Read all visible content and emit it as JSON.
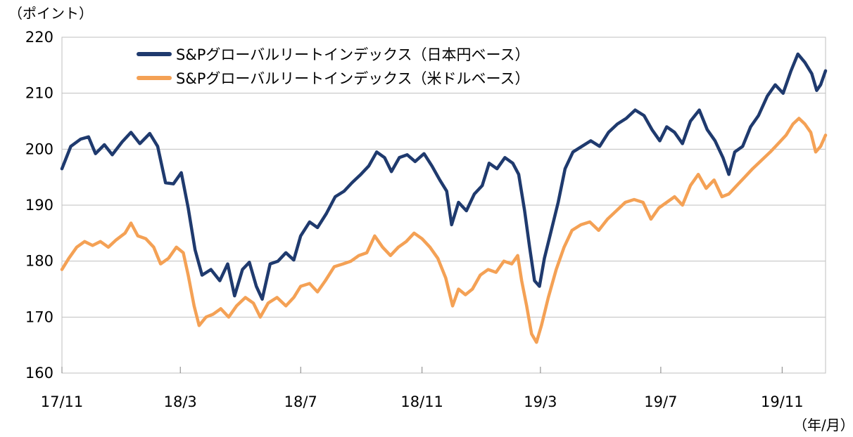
{
  "chart_data": {
    "type": "line",
    "title": "",
    "ylabel": "（ポイント）",
    "xlabel": "（年/月）",
    "ylim": [
      160,
      220
    ],
    "yticks": [
      160,
      170,
      180,
      190,
      200,
      210,
      220
    ],
    "ytick_labels": [
      "160",
      "170",
      "180",
      "190",
      "200",
      "210",
      "220"
    ],
    "x_range": [
      "2017-11-01",
      "2019-12-15"
    ],
    "xticks": [
      "2017-11-01",
      "2018-03-01",
      "2018-07-01",
      "2018-11-01",
      "2019-03-01",
      "2019-07-01",
      "2019-11-01"
    ],
    "xtick_labels": [
      "17/11",
      "18/3",
      "18/7",
      "18/11",
      "19/3",
      "19/7",
      "19/11"
    ],
    "grid": "horizontal",
    "legend_position": "top-left",
    "series": [
      {
        "name": "S&Pグローバルリートインデックス（日本円ベース）",
        "color": "#1f3a6e",
        "points": [
          [
            "2017-11-01",
            196.5
          ],
          [
            "2017-11-10",
            200.5
          ],
          [
            "2017-11-20",
            201.8
          ],
          [
            "2017-11-28",
            202.2
          ],
          [
            "2017-12-05",
            199.2
          ],
          [
            "2017-12-14",
            200.8
          ],
          [
            "2017-12-22",
            199.0
          ],
          [
            "2018-01-01",
            201.3
          ],
          [
            "2018-01-10",
            203.0
          ],
          [
            "2018-01-19",
            201.0
          ],
          [
            "2018-01-29",
            202.8
          ],
          [
            "2018-02-06",
            200.5
          ],
          [
            "2018-02-14",
            194.0
          ],
          [
            "2018-02-22",
            193.8
          ],
          [
            "2018-03-02",
            195.8
          ],
          [
            "2018-03-09",
            189.5
          ],
          [
            "2018-03-16",
            182.0
          ],
          [
            "2018-03-23",
            177.5
          ],
          [
            "2018-04-01",
            178.5
          ],
          [
            "2018-04-10",
            176.5
          ],
          [
            "2018-04-18",
            179.5
          ],
          [
            "2018-04-25",
            173.8
          ],
          [
            "2018-05-03",
            178.5
          ],
          [
            "2018-05-10",
            179.8
          ],
          [
            "2018-05-17",
            175.5
          ],
          [
            "2018-05-23",
            173.2
          ],
          [
            "2018-05-31",
            179.5
          ],
          [
            "2018-06-08",
            180.0
          ],
          [
            "2018-06-16",
            181.5
          ],
          [
            "2018-06-24",
            180.2
          ],
          [
            "2018-07-01",
            184.5
          ],
          [
            "2018-07-10",
            187.0
          ],
          [
            "2018-07-18",
            186.0
          ],
          [
            "2018-07-27",
            188.5
          ],
          [
            "2018-08-05",
            191.5
          ],
          [
            "2018-08-14",
            192.5
          ],
          [
            "2018-08-22",
            194.0
          ],
          [
            "2018-08-31",
            195.5
          ],
          [
            "2018-09-08",
            197.0
          ],
          [
            "2018-09-16",
            199.5
          ],
          [
            "2018-09-24",
            198.5
          ],
          [
            "2018-10-01",
            196.0
          ],
          [
            "2018-10-09",
            198.5
          ],
          [
            "2018-10-17",
            199.0
          ],
          [
            "2018-10-25",
            197.8
          ],
          [
            "2018-11-03",
            199.2
          ],
          [
            "2018-11-11",
            197.0
          ],
          [
            "2018-11-19",
            194.5
          ],
          [
            "2018-11-26",
            192.5
          ],
          [
            "2018-12-01",
            186.5
          ],
          [
            "2018-12-08",
            190.5
          ],
          [
            "2018-12-16",
            189.0
          ],
          [
            "2018-12-24",
            192.0
          ],
          [
            "2019-01-01",
            193.5
          ],
          [
            "2019-01-08",
            197.5
          ],
          [
            "2019-01-16",
            196.5
          ],
          [
            "2019-01-24",
            198.5
          ],
          [
            "2019-02-01",
            197.5
          ],
          [
            "2019-02-07",
            195.5
          ],
          [
            "2019-02-13",
            189.0
          ],
          [
            "2019-02-18",
            182.5
          ],
          [
            "2019-02-23",
            176.5
          ],
          [
            "2019-02-28",
            175.5
          ],
          [
            "2019-03-05",
            180.5
          ],
          [
            "2019-03-12",
            185.5
          ],
          [
            "2019-03-19",
            190.5
          ],
          [
            "2019-03-26",
            196.5
          ],
          [
            "2019-04-03",
            199.5
          ],
          [
            "2019-04-12",
            200.5
          ],
          [
            "2019-04-21",
            201.5
          ],
          [
            "2019-04-30",
            200.5
          ],
          [
            "2019-05-09",
            203.0
          ],
          [
            "2019-05-18",
            204.5
          ],
          [
            "2019-05-27",
            205.5
          ],
          [
            "2019-06-05",
            207.0
          ],
          [
            "2019-06-14",
            206.0
          ],
          [
            "2019-06-22",
            203.5
          ],
          [
            "2019-06-30",
            201.5
          ],
          [
            "2019-07-07",
            204.0
          ],
          [
            "2019-07-15",
            203.0
          ],
          [
            "2019-07-23",
            201.0
          ],
          [
            "2019-07-31",
            205.0
          ],
          [
            "2019-08-09",
            207.0
          ],
          [
            "2019-08-17",
            203.5
          ],
          [
            "2019-08-25",
            201.5
          ],
          [
            "2019-09-02",
            198.5
          ],
          [
            "2019-09-08",
            195.5
          ],
          [
            "2019-09-14",
            199.5
          ],
          [
            "2019-09-22",
            200.5
          ],
          [
            "2019-09-30",
            204.0
          ],
          [
            "2019-10-08",
            206.0
          ],
          [
            "2019-10-17",
            209.5
          ],
          [
            "2019-10-25",
            211.5
          ],
          [
            "2019-11-02",
            210.0
          ],
          [
            "2019-11-10",
            214.0
          ],
          [
            "2019-11-17",
            217.0
          ],
          [
            "2019-11-24",
            215.5
          ],
          [
            "2019-12-01",
            213.5
          ],
          [
            "2019-12-06",
            210.5
          ],
          [
            "2019-12-10",
            211.5
          ],
          [
            "2019-12-15",
            214.0
          ]
        ]
      },
      {
        "name": "S&Pグローバルリートインデックス（米ドルベース）",
        "color": "#f4a155",
        "points": [
          [
            "2017-11-01",
            178.5
          ],
          [
            "2017-11-08",
            180.5
          ],
          [
            "2017-11-16",
            182.5
          ],
          [
            "2017-11-24",
            183.5
          ],
          [
            "2017-12-02",
            182.8
          ],
          [
            "2017-12-10",
            183.5
          ],
          [
            "2017-12-18",
            182.5
          ],
          [
            "2017-12-26",
            183.8
          ],
          [
            "2018-01-04",
            185.0
          ],
          [
            "2018-01-10",
            186.8
          ],
          [
            "2018-01-17",
            184.5
          ],
          [
            "2018-01-25",
            184.0
          ],
          [
            "2018-02-02",
            182.5
          ],
          [
            "2018-02-09",
            179.5
          ],
          [
            "2018-02-17",
            180.5
          ],
          [
            "2018-02-25",
            182.5
          ],
          [
            "2018-03-04",
            181.5
          ],
          [
            "2018-03-09",
            177.5
          ],
          [
            "2018-03-15",
            172.0
          ],
          [
            "2018-03-20",
            168.5
          ],
          [
            "2018-03-27",
            170.0
          ],
          [
            "2018-04-03",
            170.5
          ],
          [
            "2018-04-11",
            171.5
          ],
          [
            "2018-04-19",
            170.0
          ],
          [
            "2018-04-27",
            172.0
          ],
          [
            "2018-05-06",
            173.5
          ],
          [
            "2018-05-14",
            172.5
          ],
          [
            "2018-05-21",
            170.0
          ],
          [
            "2018-05-29",
            172.5
          ],
          [
            "2018-06-07",
            173.5
          ],
          [
            "2018-06-16",
            172.0
          ],
          [
            "2018-06-24",
            173.5
          ],
          [
            "2018-07-01",
            175.5
          ],
          [
            "2018-07-10",
            176.0
          ],
          [
            "2018-07-18",
            174.5
          ],
          [
            "2018-07-26",
            176.5
          ],
          [
            "2018-08-04",
            179.0
          ],
          [
            "2018-08-13",
            179.5
          ],
          [
            "2018-08-21",
            180.0
          ],
          [
            "2018-08-29",
            181.0
          ],
          [
            "2018-09-06",
            181.5
          ],
          [
            "2018-09-14",
            184.5
          ],
          [
            "2018-09-22",
            182.5
          ],
          [
            "2018-09-30",
            181.0
          ],
          [
            "2018-10-08",
            182.5
          ],
          [
            "2018-10-16",
            183.5
          ],
          [
            "2018-10-24",
            185.0
          ],
          [
            "2018-11-01",
            184.0
          ],
          [
            "2018-11-09",
            182.5
          ],
          [
            "2018-11-17",
            180.5
          ],
          [
            "2018-11-25",
            177.0
          ],
          [
            "2018-12-02",
            172.0
          ],
          [
            "2018-12-08",
            175.0
          ],
          [
            "2018-12-15",
            174.0
          ],
          [
            "2018-12-22",
            175.0
          ],
          [
            "2018-12-30",
            177.5
          ],
          [
            "2019-01-07",
            178.5
          ],
          [
            "2019-01-15",
            178.0
          ],
          [
            "2019-01-23",
            180.0
          ],
          [
            "2019-01-31",
            179.5
          ],
          [
            "2019-02-06",
            181.0
          ],
          [
            "2019-02-10",
            176.5
          ],
          [
            "2019-02-15",
            172.0
          ],
          [
            "2019-02-20",
            167.0
          ],
          [
            "2019-02-25",
            165.5
          ],
          [
            "2019-03-02",
            168.5
          ],
          [
            "2019-03-09",
            173.5
          ],
          [
            "2019-03-17",
            178.5
          ],
          [
            "2019-03-25",
            182.5
          ],
          [
            "2019-04-02",
            185.5
          ],
          [
            "2019-04-11",
            186.5
          ],
          [
            "2019-04-20",
            187.0
          ],
          [
            "2019-04-29",
            185.5
          ],
          [
            "2019-05-08",
            187.5
          ],
          [
            "2019-05-17",
            189.0
          ],
          [
            "2019-05-26",
            190.5
          ],
          [
            "2019-06-04",
            191.0
          ],
          [
            "2019-06-13",
            190.5
          ],
          [
            "2019-06-21",
            187.5
          ],
          [
            "2019-06-29",
            189.5
          ],
          [
            "2019-07-07",
            190.5
          ],
          [
            "2019-07-15",
            191.5
          ],
          [
            "2019-07-23",
            190.0
          ],
          [
            "2019-07-31",
            193.5
          ],
          [
            "2019-08-08",
            195.5
          ],
          [
            "2019-08-16",
            193.0
          ],
          [
            "2019-08-24",
            194.5
          ],
          [
            "2019-09-01",
            191.5
          ],
          [
            "2019-09-08",
            192.0
          ],
          [
            "2019-09-16",
            193.5
          ],
          [
            "2019-09-24",
            195.0
          ],
          [
            "2019-10-02",
            196.5
          ],
          [
            "2019-10-11",
            198.0
          ],
          [
            "2019-10-20",
            199.5
          ],
          [
            "2019-10-28",
            201.0
          ],
          [
            "2019-11-05",
            202.5
          ],
          [
            "2019-11-12",
            204.5
          ],
          [
            "2019-11-18",
            205.5
          ],
          [
            "2019-11-24",
            204.5
          ],
          [
            "2019-11-30",
            203.0
          ],
          [
            "2019-12-05",
            199.5
          ],
          [
            "2019-12-10",
            200.5
          ],
          [
            "2019-12-15",
            202.5
          ]
        ]
      }
    ]
  }
}
